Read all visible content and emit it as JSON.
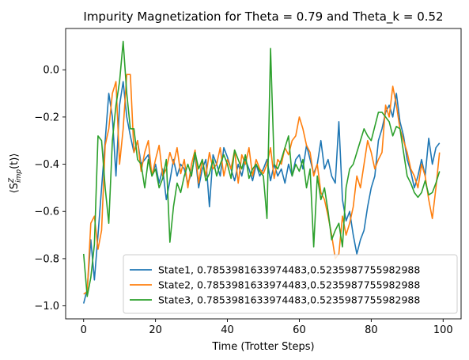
{
  "chart_data": {
    "type": "line",
    "title": "Impurity Magnetization for Theta = 0.79 and Theta_k = 0.52",
    "xlabel": "Time (Trotter Steps)",
    "ylabel": "⟨S",
    "ylabel_sup": "Z",
    "ylabel_sub": "imp",
    "ylabel_tail": "(t)⟩",
    "xlim": [
      -5,
      105
    ],
    "ylim": [
      -1.055,
      0.175
    ],
    "xticks": [
      0,
      20,
      40,
      60,
      80,
      100
    ],
    "xtick_labels": [
      "0",
      "20",
      "40",
      "60",
      "80",
      "100"
    ],
    "yticks": [
      -1.0,
      -0.8,
      -0.6,
      -0.4,
      -0.2,
      0.0
    ],
    "ytick_labels": [
      "−1.0",
      "−0.8",
      "−0.6",
      "−0.4",
      "−0.2",
      "0.0"
    ],
    "grid": false,
    "legend_position": "lower-right",
    "x": [
      0,
      1,
      2,
      3,
      4,
      5,
      6,
      7,
      8,
      9,
      10,
      11,
      12,
      13,
      14,
      15,
      16,
      17,
      18,
      19,
      20,
      21,
      22,
      23,
      24,
      25,
      26,
      27,
      28,
      29,
      30,
      31,
      32,
      33,
      34,
      35,
      36,
      37,
      38,
      39,
      40,
      41,
      42,
      43,
      44,
      45,
      46,
      47,
      48,
      49,
      50,
      51,
      52,
      53,
      54,
      55,
      56,
      57,
      58,
      59,
      60,
      61,
      62,
      63,
      64,
      65,
      66,
      67,
      68,
      69,
      70,
      71,
      72,
      73,
      74,
      75,
      76,
      77,
      78,
      79,
      80,
      81,
      82,
      83,
      84,
      85,
      86,
      87,
      88,
      89,
      90,
      91,
      92,
      93,
      94,
      95,
      96,
      97,
      98,
      99
    ],
    "series": [
      {
        "name": "State1, 0.7853981633974483,0.5235987755982988",
        "color": "#1f77b4",
        "values": [
          -0.99,
          -0.93,
          -0.72,
          -0.89,
          -0.7,
          -0.5,
          -0.3,
          -0.1,
          -0.2,
          -0.45,
          -0.15,
          -0.05,
          -0.2,
          -0.28,
          -0.35,
          -0.3,
          -0.4,
          -0.38,
          -0.36,
          -0.45,
          -0.4,
          -0.48,
          -0.42,
          -0.55,
          -0.47,
          -0.38,
          -0.45,
          -0.4,
          -0.42,
          -0.48,
          -0.44,
          -0.36,
          -0.5,
          -0.42,
          -0.38,
          -0.58,
          -0.36,
          -0.4,
          -0.45,
          -0.33,
          -0.37,
          -0.42,
          -0.47,
          -0.4,
          -0.45,
          -0.38,
          -0.42,
          -0.47,
          -0.4,
          -0.45,
          -0.42,
          -0.38,
          -0.47,
          -0.4,
          -0.45,
          -0.42,
          -0.48,
          -0.4,
          -0.45,
          -0.38,
          -0.36,
          -0.42,
          -0.32,
          -0.38,
          -0.44,
          -0.4,
          -0.3,
          -0.42,
          -0.38,
          -0.45,
          -0.48,
          -0.22,
          -0.55,
          -0.64,
          -0.6,
          -0.7,
          -0.78,
          -0.72,
          -0.68,
          -0.58,
          -0.5,
          -0.45,
          -0.3,
          -0.25,
          -0.18,
          -0.15,
          -0.2,
          -0.1,
          -0.22,
          -0.28,
          -0.38,
          -0.43,
          -0.5,
          -0.45,
          -0.38,
          -0.45,
          -0.29,
          -0.4,
          -0.33,
          -0.31
        ]
      },
      {
        "name": "State2, 0.7853981633974483,0.5235987755982988",
        "color": "#ff7f0e",
        "values": [
          -0.95,
          -0.94,
          -0.65,
          -0.62,
          -0.76,
          -0.68,
          -0.32,
          -0.25,
          -0.1,
          -0.05,
          -0.4,
          -0.25,
          -0.02,
          -0.02,
          -0.35,
          -0.3,
          -0.43,
          -0.35,
          -0.3,
          -0.45,
          -0.38,
          -0.32,
          -0.45,
          -0.42,
          -0.35,
          -0.4,
          -0.33,
          -0.44,
          -0.38,
          -0.5,
          -0.4,
          -0.34,
          -0.48,
          -0.38,
          -0.45,
          -0.35,
          -0.42,
          -0.4,
          -0.33,
          -0.45,
          -0.38,
          -0.42,
          -0.34,
          -0.48,
          -0.36,
          -0.4,
          -0.33,
          -0.45,
          -0.38,
          -0.42,
          -0.44,
          -0.4,
          -0.33,
          -0.46,
          -0.38,
          -0.4,
          -0.33,
          -0.36,
          -0.3,
          -0.28,
          -0.2,
          -0.25,
          -0.32,
          -0.35,
          -0.45,
          -0.4,
          -0.52,
          -0.55,
          -0.62,
          -0.7,
          -0.8,
          -0.78,
          -0.62,
          -0.7,
          -0.65,
          -0.58,
          -0.45,
          -0.5,
          -0.4,
          -0.3,
          -0.35,
          -0.42,
          -0.38,
          -0.35,
          -0.15,
          -0.2,
          -0.07,
          -0.15,
          -0.25,
          -0.3,
          -0.35,
          -0.42,
          -0.45,
          -0.5,
          -0.4,
          -0.45,
          -0.55,
          -0.63,
          -0.5,
          -0.35
        ]
      },
      {
        "name": "State3, 0.7853981633974483,0.5235987755982988",
        "color": "#2ca02c",
        "values": [
          -0.78,
          -0.96,
          -0.88,
          -0.74,
          -0.28,
          -0.3,
          -0.5,
          -0.65,
          -0.3,
          -0.15,
          -0.05,
          0.12,
          -0.1,
          -0.25,
          -0.25,
          -0.38,
          -0.4,
          -0.5,
          -0.38,
          -0.45,
          -0.42,
          -0.5,
          -0.46,
          -0.38,
          -0.73,
          -0.58,
          -0.48,
          -0.52,
          -0.45,
          -0.4,
          -0.45,
          -0.35,
          -0.42,
          -0.38,
          -0.47,
          -0.44,
          -0.38,
          -0.45,
          -0.4,
          -0.36,
          -0.4,
          -0.46,
          -0.34,
          -0.38,
          -0.42,
          -0.36,
          -0.46,
          -0.42,
          -0.4,
          -0.43,
          -0.45,
          -0.63,
          0.09,
          -0.4,
          -0.42,
          -0.38,
          -0.33,
          -0.28,
          -0.45,
          -0.4,
          -0.43,
          -0.38,
          -0.5,
          -0.42,
          -0.75,
          -0.45,
          -0.55,
          -0.5,
          -0.6,
          -0.72,
          -0.68,
          -0.65,
          -0.75,
          -0.5,
          -0.42,
          -0.4,
          -0.35,
          -0.3,
          -0.25,
          -0.28,
          -0.3,
          -0.24,
          -0.18,
          -0.18,
          -0.2,
          -0.22,
          -0.28,
          -0.24,
          -0.25,
          -0.35,
          -0.45,
          -0.48,
          -0.52,
          -0.54,
          -0.52,
          -0.47,
          -0.53,
          -0.52,
          -0.48,
          -0.43
        ]
      }
    ]
  }
}
